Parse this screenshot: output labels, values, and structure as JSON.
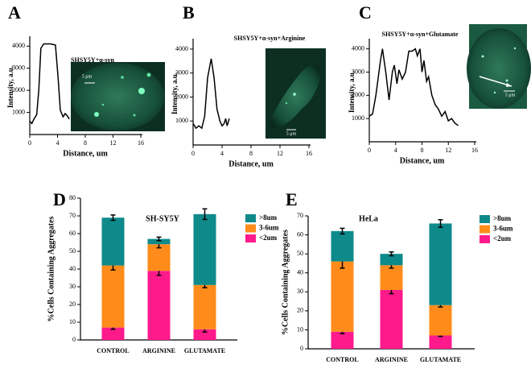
{
  "chart_data": [
    {
      "type": "line",
      "panel_label": "A",
      "title": "SHSY5Y+α-syn",
      "annotation": "5 μm",
      "x_label": "Distance, um",
      "y_label": "Intensity, a.u.",
      "color": "#000000",
      "x": [
        0,
        0.3,
        0.6,
        1,
        1.3,
        1.6,
        2,
        3,
        3.7,
        4.1,
        4.4,
        4.8,
        5.1,
        5.4,
        5.7
      ],
      "values": [
        600,
        500,
        700,
        900,
        2000,
        3900,
        4100,
        4100,
        4050,
        2500,
        1100,
        800,
        950,
        850,
        700
      ],
      "xlim": [
        0,
        16
      ],
      "xticks": [
        0,
        4,
        8,
        12,
        16
      ],
      "ylim": [
        0,
        4300
      ],
      "yticks": [
        1000,
        2000,
        3000,
        4000
      ]
    },
    {
      "type": "line",
      "panel_label": "B",
      "title": "SHSY5Y+α-syn+Arginine",
      "annotation": "5 μm",
      "x_label": "Distance, um",
      "y_label": "Intensity, a.u.",
      "color": "#000000",
      "x": [
        0,
        0.4,
        0.8,
        1.2,
        1.6,
        2,
        2.5,
        2.9,
        3.3,
        3.7,
        4,
        4.3,
        4.5,
        4.7,
        5
      ],
      "values": [
        900,
        700,
        800,
        700,
        1200,
        2800,
        3600,
        2800,
        1500,
        1000,
        800,
        900,
        1100,
        800,
        1100
      ],
      "xlim": [
        0,
        16
      ],
      "xticks": [
        0,
        4,
        8,
        12,
        16
      ],
      "ylim": [
        0,
        4300
      ],
      "yticks": [
        1000,
        2000,
        3000,
        4000
      ]
    },
    {
      "type": "line",
      "panel_label": "C",
      "title": "SHSY5Y+α-syn+Glutamate",
      "annotation": "5 μm",
      "x_label": "Distance, um",
      "y_label": "Intensity, a.u.",
      "color": "#000000",
      "x": [
        0,
        0.5,
        1,
        1.7,
        2,
        2.5,
        3,
        3.5,
        3.8,
        4.2,
        4.5,
        5,
        5.5,
        6,
        6.5,
        7,
        7.3,
        7.7,
        8,
        8.3,
        8.7,
        9,
        9.5,
        10,
        10.5,
        11,
        11.5,
        12,
        12.5,
        13,
        13.5
      ],
      "values": [
        1100,
        1200,
        2000,
        3500,
        4000,
        3000,
        1800,
        3000,
        3300,
        2500,
        3100,
        2700,
        3000,
        3900,
        3900,
        4000,
        3700,
        4000,
        3000,
        3500,
        2600,
        2800,
        2000,
        1600,
        1400,
        1100,
        1300,
        900,
        1000,
        800,
        700
      ],
      "xlim": [
        0,
        16
      ],
      "xticks": [
        0,
        4,
        8,
        12,
        16
      ],
      "ylim": [
        0,
        4300
      ],
      "yticks": [
        1000,
        2000,
        3000,
        4000
      ]
    },
    {
      "type": "stacked_bar",
      "panel_label": "D",
      "title": "SH-SY5Y",
      "y_label": "%Cells Containing Aggregates",
      "categories": [
        "CONTROL",
        "ARGININE",
        "GLUTAMATE"
      ],
      "series": [
        {
          "name": "<2um",
          "color": "#ff1a8c",
          "values": [
            7,
            39,
            6
          ],
          "errors": [
            1,
            2.5,
            1.5
          ]
        },
        {
          "name": "3-6um",
          "color": "#ff8c1a",
          "values": [
            35,
            15,
            25
          ],
          "errors": [
            2.5,
            2,
            1.5
          ]
        },
        {
          "name": ">8um",
          "color": "#0f8a8a",
          "values": [
            27,
            3,
            40
          ],
          "errors": [
            1.5,
            1,
            3
          ]
        }
      ],
      "ylim": [
        0,
        80
      ],
      "yticks": [
        0,
        10,
        20,
        30,
        40,
        50,
        60,
        70,
        80
      ],
      "legend": "upper right"
    },
    {
      "type": "stacked_bar",
      "panel_label": "E",
      "title": "HeLa",
      "y_label": "%Cells Containing Aggregates",
      "categories": [
        "CONTROL",
        "ARGININE",
        "GLUTAMATE"
      ],
      "series": [
        {
          "name": "<2um",
          "color": "#ff1a8c",
          "values": [
            9,
            31,
            7
          ],
          "errors": [
            1,
            2,
            0.5
          ]
        },
        {
          "name": "3-6um",
          "color": "#ff8c1a",
          "values": [
            37,
            13,
            16
          ],
          "errors": [
            3.5,
            1.5,
            1
          ]
        },
        {
          "name": ">8um",
          "color": "#0f8a8a",
          "values": [
            16,
            6,
            43
          ],
          "errors": [
            1.5,
            1,
            2
          ]
        }
      ],
      "ylim": [
        0,
        70
      ],
      "yticks": [
        0,
        10,
        20,
        30,
        40,
        50,
        60,
        70
      ],
      "legend": "upper right"
    }
  ]
}
